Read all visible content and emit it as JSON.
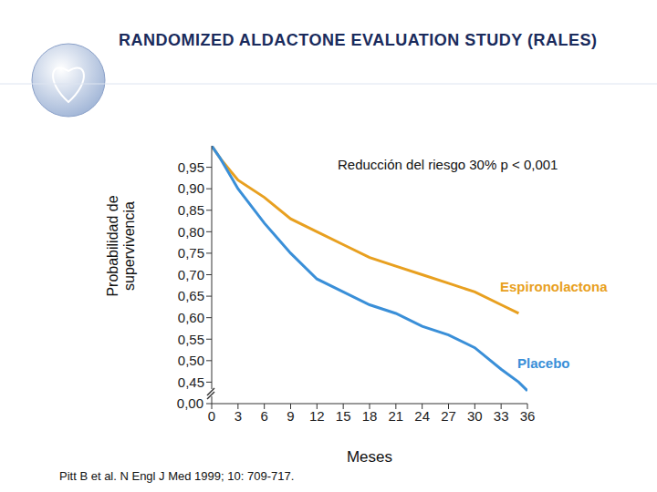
{
  "chart_data": {
    "type": "line",
    "title": "RANDOMIZED ALDACTONE EVALUATION STUDY (RALES)",
    "annotation": "Reducción del riesgo 30% p < 0,001",
    "x_label": "Meses",
    "y_label": "Probabilidad de supervivencia",
    "source": "Pitt B et al. N Engl J Med 1999; 10: 709-717.",
    "x": [
      0,
      1,
      3,
      6,
      9,
      12,
      15,
      18,
      21,
      24,
      27,
      30,
      33,
      35,
      36
    ],
    "series": [
      {
        "name": "Espironolactona",
        "color": "#e8a020",
        "values": [
          1.0,
          0.97,
          0.92,
          0.88,
          0.83,
          0.8,
          0.77,
          0.74,
          0.72,
          0.7,
          0.68,
          0.66,
          0.63,
          0.61,
          null
        ]
      },
      {
        "name": "Placebo",
        "color": "#3a8fd8",
        "values": [
          1.0,
          0.97,
          0.9,
          0.82,
          0.75,
          0.69,
          0.66,
          0.63,
          0.61,
          0.58,
          0.56,
          0.53,
          0.48,
          0.45,
          0.43
        ]
      }
    ],
    "xlim": [
      0,
      36
    ],
    "xticks": [
      0,
      3,
      6,
      9,
      12,
      15,
      18,
      21,
      24,
      27,
      30,
      33,
      36
    ],
    "ylim": [
      0.4,
      1.0
    ],
    "yticks": [
      {
        "value": 0.45,
        "label": "0,45"
      },
      {
        "value": 0.5,
        "label": "0,50"
      },
      {
        "value": 0.55,
        "label": "0,55"
      },
      {
        "value": 0.6,
        "label": "0,60"
      },
      {
        "value": 0.65,
        "label": "0,65"
      },
      {
        "value": 0.7,
        "label": "0,70"
      },
      {
        "value": 0.75,
        "label": "0,75"
      },
      {
        "value": 0.8,
        "label": "0,80"
      },
      {
        "value": 0.85,
        "label": "0,85"
      },
      {
        "value": 0.9,
        "label": "0,90"
      },
      {
        "value": 0.95,
        "label": "0,95"
      }
    ],
    "y_break_label": "0,00",
    "grid": false
  }
}
